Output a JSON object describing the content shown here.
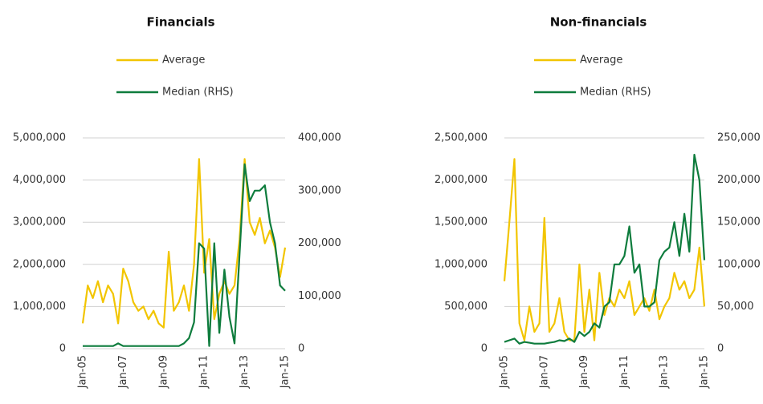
{
  "chart_data": [
    {
      "type": "line",
      "title": "Financials",
      "x": [
        2005,
        2005.25,
        2005.5,
        2005.75,
        2006,
        2006.25,
        2006.5,
        2006.75,
        2007,
        2007.25,
        2007.5,
        2007.75,
        2008,
        2008.25,
        2008.5,
        2008.75,
        2009,
        2009.25,
        2009.5,
        2009.75,
        2010,
        2010.25,
        2010.5,
        2010.75,
        2011,
        2011.25,
        2011.5,
        2011.75,
        2012,
        2012.25,
        2012.5,
        2012.75,
        2013,
        2013.25,
        2013.5,
        2013.75,
        2014,
        2014.25,
        2014.5,
        2014.75,
        2015
      ],
      "xlim": [
        2005,
        2015
      ],
      "xticks": [
        {
          "value": 2005,
          "label": "Jan-05"
        },
        {
          "value": 2007,
          "label": "Jan-07"
        },
        {
          "value": 2009,
          "label": "Jan-09"
        },
        {
          "value": 2011,
          "label": "Jan-11"
        },
        {
          "value": 2013,
          "label": "Jan-13"
        },
        {
          "value": 2015,
          "label": "Jan-15"
        }
      ],
      "ylim": [
        0,
        5000000
      ],
      "yticks": [
        0,
        {
          "value": 1000000,
          "label": "1,000,000"
        },
        {
          "value": 2000000,
          "label": "2,000,000"
        },
        {
          "value": 3000000,
          "label": "3,000,000"
        },
        {
          "value": 4000000,
          "label": "4,000,000"
        },
        {
          "value": 5000000,
          "label": "5,000,000"
        }
      ],
      "y2lim": [
        0,
        400000
      ],
      "y2ticks": [
        0,
        {
          "value": 100000,
          "label": "100,000"
        },
        {
          "value": 200000,
          "label": "200,000"
        },
        {
          "value": 300000,
          "label": "300,000"
        },
        {
          "value": 400000,
          "label": "400,000"
        }
      ],
      "grid": true,
      "series": [
        {
          "name": "Average",
          "color": "#f2c500",
          "values": [
            600000,
            1500000,
            1200000,
            1600000,
            1100000,
            1500000,
            1300000,
            600000,
            1900000,
            1600000,
            1100000,
            900000,
            1000000,
            700000,
            900000,
            600000,
            500000,
            2300000,
            900000,
            1100000,
            1500000,
            900000,
            2000000,
            4500000,
            1800000,
            2600000,
            700000,
            1300000,
            1600000,
            1300000,
            1500000,
            2600000,
            4500000,
            3000000,
            2700000,
            3100000,
            2500000,
            2800000,
            2400000,
            1700000,
            2400000
          ]
        },
        {
          "name": "Median (RHS)",
          "color": "#0e7c3d",
          "axis": "y2",
          "values": [
            5000,
            5000,
            5000,
            5000,
            5000,
            5000,
            5000,
            10000,
            5000,
            5000,
            5000,
            5000,
            5000,
            5000,
            5000,
            5000,
            5000,
            5000,
            5000,
            5000,
            10000,
            20000,
            50000,
            200000,
            190000,
            5000,
            200000,
            30000,
            150000,
            60000,
            10000,
            180000,
            350000,
            280000,
            300000,
            300000,
            310000,
            240000,
            200000,
            120000,
            110000
          ]
        }
      ]
    },
    {
      "type": "line",
      "title": "Non-financials",
      "x": [
        2005,
        2005.25,
        2005.5,
        2005.75,
        2006,
        2006.25,
        2006.5,
        2006.75,
        2007,
        2007.25,
        2007.5,
        2007.75,
        2008,
        2008.25,
        2008.5,
        2008.75,
        2009,
        2009.25,
        2009.5,
        2009.75,
        2010,
        2010.25,
        2010.5,
        2010.75,
        2011,
        2011.25,
        2011.5,
        2011.75,
        2012,
        2012.25,
        2012.5,
        2012.75,
        2013,
        2013.25,
        2013.5,
        2013.75,
        2014,
        2014.25,
        2014.5,
        2014.75,
        2015
      ],
      "xlim": [
        2005,
        2015
      ],
      "xticks": [
        {
          "value": 2005,
          "label": "Jan-05"
        },
        {
          "value": 2007,
          "label": "Jan-07"
        },
        {
          "value": 2009,
          "label": "Jan-09"
        },
        {
          "value": 2011,
          "label": "Jan-11"
        },
        {
          "value": 2013,
          "label": "Jan-13"
        },
        {
          "value": 2015,
          "label": "Jan-15"
        }
      ],
      "ylim": [
        0,
        2500000
      ],
      "yticks": [
        0,
        {
          "value": 500000,
          "label": "500,000"
        },
        {
          "value": 1000000,
          "label": "1,000,000"
        },
        {
          "value": 1500000,
          "label": "1,500,000"
        },
        {
          "value": 2000000,
          "label": "2,000,000"
        },
        {
          "value": 2500000,
          "label": "2,500,000"
        }
      ],
      "y2lim": [
        0,
        250000
      ],
      "y2ticks": [
        0,
        {
          "value": 50000,
          "label": "50,000"
        },
        {
          "value": 100000,
          "label": "100,000"
        },
        {
          "value": 150000,
          "label": "150,000"
        },
        {
          "value": 200000,
          "label": "200,000"
        },
        {
          "value": 250000,
          "label": "250,000"
        }
      ],
      "grid": true,
      "series": [
        {
          "name": "Average",
          "color": "#f2c500",
          "values": [
            800000,
            1500000,
            2250000,
            300000,
            100000,
            500000,
            200000,
            300000,
            1550000,
            200000,
            300000,
            600000,
            200000,
            100000,
            100000,
            1000000,
            200000,
            700000,
            100000,
            900000,
            400000,
            600000,
            500000,
            700000,
            600000,
            800000,
            400000,
            500000,
            600000,
            450000,
            700000,
            350000,
            500000,
            600000,
            900000,
            700000,
            800000,
            600000,
            700000,
            1200000,
            500000
          ]
        },
        {
          "name": "Median (RHS)",
          "color": "#0e7c3d",
          "axis": "y2",
          "values": [
            8000,
            10000,
            12000,
            6000,
            8000,
            7000,
            6000,
            6000,
            6000,
            7000,
            8000,
            10000,
            9000,
            12000,
            8000,
            20000,
            15000,
            20000,
            30000,
            25000,
            50000,
            55000,
            100000,
            100000,
            110000,
            145000,
            90000,
            100000,
            50000,
            50000,
            55000,
            105000,
            115000,
            120000,
            150000,
            110000,
            160000,
            115000,
            230000,
            200000,
            105000
          ]
        }
      ]
    }
  ]
}
